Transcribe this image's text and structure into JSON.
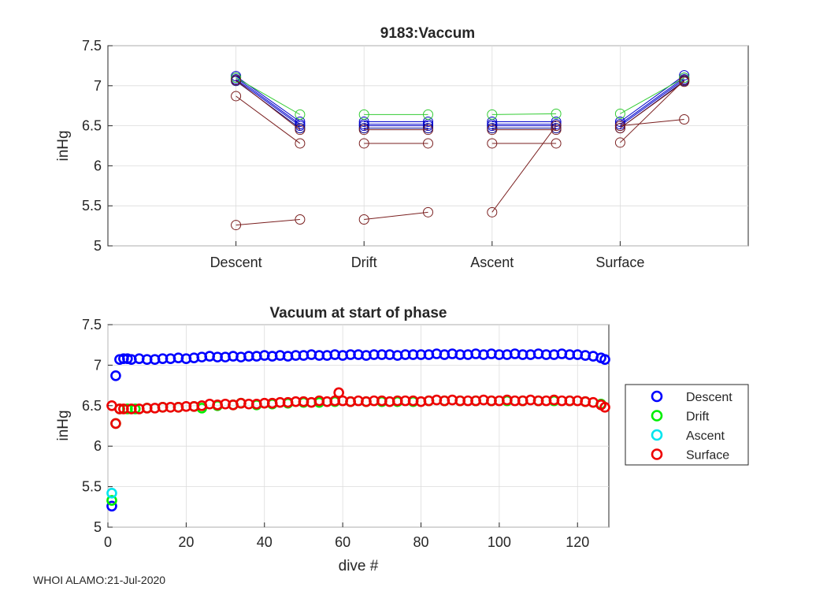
{
  "chart_data": [
    {
      "type": "line",
      "title": "9183:Vaccum",
      "xlabel": "",
      "ylabel": "inHg",
      "ylim": [
        5,
        7.5
      ],
      "y_ticks": [
        "5",
        "5.5",
        "6",
        "6.5",
        "7",
        "7.5"
      ],
      "x_ticks": [
        "Descent",
        "Drift",
        "Ascent",
        "Surface"
      ],
      "xlim": [
        0,
        10
      ],
      "tick_positions": [
        2,
        4,
        6,
        8
      ],
      "grid": true,
      "marker": "open-circle",
      "segments": [
        {
          "x": [
            2,
            3
          ],
          "y": [
            7.12,
            6.55
          ],
          "color": "#0000cc"
        },
        {
          "x": [
            2,
            3
          ],
          "y": [
            7.1,
            6.52
          ],
          "color": "#0000cc"
        },
        {
          "x": [
            2,
            3
          ],
          "y": [
            7.08,
            6.5
          ],
          "color": "#0000cc"
        },
        {
          "x": [
            2,
            3
          ],
          "y": [
            7.06,
            6.47
          ],
          "color": "#00008b"
        },
        {
          "x": [
            2,
            3
          ],
          "y": [
            7.1,
            6.64
          ],
          "color": "#33cc33"
        },
        {
          "x": [
            2,
            3
          ],
          "y": [
            7.07,
            6.45
          ],
          "color": "#7a1f1f"
        },
        {
          "x": [
            2,
            3
          ],
          "y": [
            6.87,
            6.28
          ],
          "color": "#7a1f1f"
        },
        {
          "x": [
            2,
            3
          ],
          "y": [
            5.26,
            5.33
          ],
          "color": "#7a1f1f"
        },
        {
          "x": [
            4,
            5
          ],
          "y": [
            6.55,
            6.55
          ],
          "color": "#0000cc"
        },
        {
          "x": [
            4,
            5
          ],
          "y": [
            6.52,
            6.52
          ],
          "color": "#0000cc"
        },
        {
          "x": [
            4,
            5
          ],
          "y": [
            6.5,
            6.5
          ],
          "color": "#0000cc"
        },
        {
          "x": [
            4,
            5
          ],
          "y": [
            6.47,
            6.47
          ],
          "color": "#00008b"
        },
        {
          "x": [
            4,
            5
          ],
          "y": [
            6.64,
            6.64
          ],
          "color": "#33cc33"
        },
        {
          "x": [
            4,
            5
          ],
          "y": [
            6.45,
            6.45
          ],
          "color": "#7a1f1f"
        },
        {
          "x": [
            4,
            5
          ],
          "y": [
            6.28,
            6.28
          ],
          "color": "#7a1f1f"
        },
        {
          "x": [
            4,
            5
          ],
          "y": [
            5.33,
            5.42
          ],
          "color": "#7a1f1f"
        },
        {
          "x": [
            6,
            7
          ],
          "y": [
            6.55,
            6.55
          ],
          "color": "#0000cc"
        },
        {
          "x": [
            6,
            7
          ],
          "y": [
            6.52,
            6.52
          ],
          "color": "#0000cc"
        },
        {
          "x": [
            6,
            7
          ],
          "y": [
            6.5,
            6.5
          ],
          "color": "#0000cc"
        },
        {
          "x": [
            6,
            7
          ],
          "y": [
            6.47,
            6.47
          ],
          "color": "#00008b"
        },
        {
          "x": [
            6,
            7
          ],
          "y": [
            6.64,
            6.65
          ],
          "color": "#33cc33"
        },
        {
          "x": [
            6,
            7
          ],
          "y": [
            6.45,
            6.45
          ],
          "color": "#7a1f1f"
        },
        {
          "x": [
            6,
            7
          ],
          "y": [
            6.28,
            6.28
          ],
          "color": "#7a1f1f"
        },
        {
          "x": [
            6,
            7
          ],
          "y": [
            5.42,
            6.5
          ],
          "color": "#7a1f1f"
        },
        {
          "x": [
            8,
            9
          ],
          "y": [
            6.55,
            7.13
          ],
          "color": "#0000cc"
        },
        {
          "x": [
            8,
            9
          ],
          "y": [
            6.52,
            7.1
          ],
          "color": "#0000cc"
        },
        {
          "x": [
            8,
            9
          ],
          "y": [
            6.5,
            7.08
          ],
          "color": "#0000cc"
        },
        {
          "x": [
            8,
            9
          ],
          "y": [
            6.47,
            7.06
          ],
          "color": "#00008b"
        },
        {
          "x": [
            8,
            9
          ],
          "y": [
            6.65,
            7.1
          ],
          "color": "#33cc33"
        },
        {
          "x": [
            8,
            9
          ],
          "y": [
            6.5,
            6.58
          ],
          "color": "#7a1f1f"
        },
        {
          "x": [
            8,
            9
          ],
          "y": [
            6.29,
            7.07
          ],
          "color": "#7a1f1f"
        },
        {
          "x": [
            8,
            9
          ],
          "y": [
            6.47,
            7.05
          ],
          "color": "#7a1f1f"
        }
      ]
    },
    {
      "type": "scatter",
      "title": "Vacuum at start of phase",
      "xlabel": "dive #",
      "ylabel": "inHg",
      "xlim": [
        0,
        128
      ],
      "ylim": [
        5,
        7.5
      ],
      "x_ticks": [
        "0",
        "20",
        "40",
        "60",
        "80",
        "100",
        "120"
      ],
      "x_tick_values": [
        0,
        20,
        40,
        60,
        80,
        100,
        120
      ],
      "y_ticks": [
        "5",
        "5.5",
        "6",
        "6.5",
        "7",
        "7.5"
      ],
      "grid": true,
      "legend_position": "outside-right",
      "series": [
        {
          "name": "Descent",
          "color": "#0000ff",
          "x": [
            1,
            2,
            3,
            4,
            5,
            6,
            8,
            10,
            12,
            14,
            16,
            18,
            20,
            22,
            24,
            26,
            28,
            30,
            32,
            34,
            36,
            38,
            40,
            42,
            44,
            46,
            48,
            50,
            52,
            54,
            56,
            58,
            60,
            62,
            64,
            66,
            68,
            70,
            72,
            74,
            76,
            78,
            80,
            82,
            84,
            86,
            88,
            90,
            92,
            94,
            96,
            98,
            100,
            102,
            104,
            106,
            108,
            110,
            112,
            114,
            116,
            118,
            120,
            122,
            124,
            126,
            127
          ],
          "y": [
            5.26,
            6.87,
            7.07,
            7.08,
            7.08,
            7.07,
            7.08,
            7.07,
            7.07,
            7.08,
            7.08,
            7.09,
            7.08,
            7.09,
            7.1,
            7.11,
            7.1,
            7.1,
            7.11,
            7.1,
            7.11,
            7.11,
            7.12,
            7.11,
            7.12,
            7.11,
            7.12,
            7.12,
            7.13,
            7.12,
            7.12,
            7.13,
            7.12,
            7.13,
            7.13,
            7.12,
            7.13,
            7.13,
            7.13,
            7.12,
            7.13,
            7.13,
            7.13,
            7.13,
            7.14,
            7.13,
            7.14,
            7.13,
            7.13,
            7.14,
            7.13,
            7.14,
            7.13,
            7.13,
            7.14,
            7.13,
            7.13,
            7.14,
            7.13,
            7.13,
            7.14,
            7.13,
            7.13,
            7.12,
            7.11,
            7.09,
            7.07
          ]
        },
        {
          "name": "Drift",
          "color": "#00ee00",
          "x": [
            1,
            2,
            3,
            5,
            7,
            10,
            14,
            18,
            22,
            24,
            28,
            32,
            34,
            38,
            42,
            46,
            50,
            54,
            58,
            62,
            66,
            70,
            74,
            78,
            82,
            86,
            90,
            94,
            98,
            102,
            106,
            110,
            114,
            118,
            122,
            126
          ],
          "y": [
            5.33,
            6.28,
            6.46,
            6.46,
            6.46,
            6.47,
            6.48,
            6.48,
            6.49,
            6.47,
            6.5,
            6.51,
            6.53,
            6.51,
            6.52,
            6.53,
            6.54,
            6.54,
            6.55,
            6.55,
            6.55,
            6.55,
            6.55,
            6.55,
            6.56,
            6.56,
            6.56,
            6.56,
            6.56,
            6.56,
            6.56,
            6.56,
            6.56,
            6.56,
            6.55,
            6.52
          ]
        },
        {
          "name": "Ascent",
          "color": "#00e5ee",
          "x": [
            1
          ],
          "y": [
            5.42
          ]
        },
        {
          "name": "Surface",
          "color": "#ee0000",
          "x": [
            1,
            2,
            3,
            4,
            6,
            8,
            10,
            12,
            14,
            16,
            18,
            20,
            22,
            24,
            26,
            28,
            30,
            32,
            34,
            36,
            38,
            40,
            42,
            44,
            46,
            48,
            50,
            52,
            54,
            56,
            58,
            59,
            60,
            62,
            64,
            66,
            68,
            70,
            72,
            74,
            76,
            78,
            80,
            82,
            84,
            86,
            88,
            90,
            92,
            94,
            96,
            98,
            100,
            102,
            104,
            106,
            108,
            110,
            112,
            114,
            116,
            118,
            120,
            122,
            124,
            126,
            127
          ],
          "y": [
            6.5,
            6.28,
            6.46,
            6.46,
            6.46,
            6.46,
            6.47,
            6.47,
            6.48,
            6.48,
            6.48,
            6.49,
            6.49,
            6.5,
            6.52,
            6.51,
            6.52,
            6.51,
            6.53,
            6.52,
            6.52,
            6.53,
            6.53,
            6.54,
            6.54,
            6.55,
            6.55,
            6.54,
            6.56,
            6.55,
            6.56,
            6.66,
            6.56,
            6.55,
            6.56,
            6.55,
            6.56,
            6.56,
            6.55,
            6.56,
            6.56,
            6.56,
            6.55,
            6.56,
            6.57,
            6.56,
            6.57,
            6.56,
            6.56,
            6.56,
            6.57,
            6.56,
            6.56,
            6.57,
            6.56,
            6.56,
            6.57,
            6.56,
            6.56,
            6.57,
            6.56,
            6.56,
            6.56,
            6.55,
            6.54,
            6.51,
            6.48
          ]
        }
      ]
    }
  ],
  "footer": {
    "text": "WHOI ALAMO:21-Jul-2020"
  }
}
